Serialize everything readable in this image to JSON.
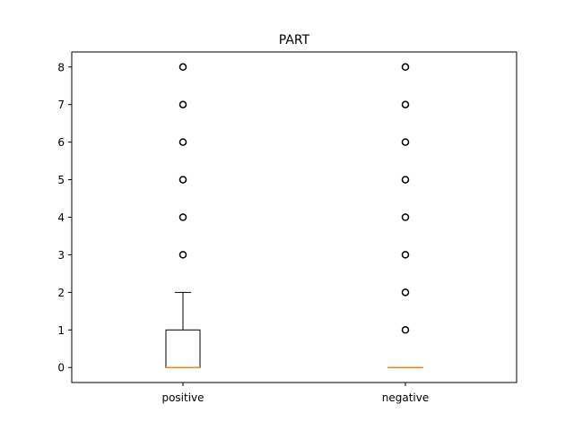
{
  "chart_data": {
    "type": "box",
    "title": "PART",
    "xlabel": "",
    "ylabel": "",
    "categories": [
      "positive",
      "negative"
    ],
    "ylim": [
      -0.4,
      8.4
    ],
    "yticks": [
      0,
      1,
      2,
      3,
      4,
      5,
      6,
      7,
      8
    ],
    "grid": false,
    "boxes": [
      {
        "label": "positive",
        "whisker_low": 0,
        "q1": 0,
        "median": 0,
        "q3": 1,
        "whisker_high": 2,
        "fliers": [
          3,
          4,
          5,
          6,
          7,
          8
        ]
      },
      {
        "label": "negative",
        "whisker_low": 0,
        "q1": 0,
        "median": 0,
        "q3": 0,
        "whisker_high": 0,
        "fliers": [
          1,
          2,
          3,
          4,
          5,
          6,
          7,
          8
        ]
      }
    ],
    "colors": {
      "box": "#000000",
      "median": "#ff7f0e",
      "flier": "#000000",
      "axes": "#000000"
    }
  }
}
